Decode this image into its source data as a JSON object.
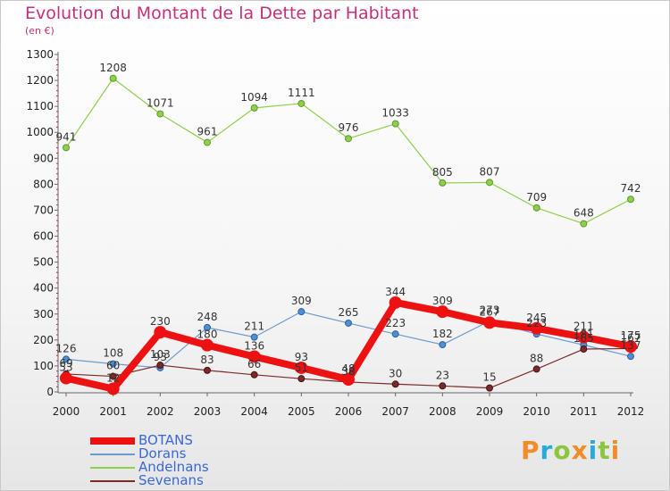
{
  "title": "Evolution du Montant de la Dette par Habitant",
  "subtitle": "(en €)",
  "logo": {
    "text": "Proxiti",
    "colors": [
      "#f28c28",
      "#29a9e0",
      "#8cc63f",
      "#f28c28",
      "#29a9e0",
      "#8cc63f",
      "#f28c28"
    ]
  },
  "chart_data": {
    "type": "line",
    "title": "Evolution du Montant de la Dette par Habitant",
    "subtitle": "(en €)",
    "xlabel": "",
    "ylabel": "",
    "x": [
      "2000",
      "2001",
      "2002",
      "2003",
      "2004",
      "2005",
      "2006",
      "2007",
      "2008",
      "2009",
      "2010",
      "2011",
      "2012"
    ],
    "ylim": [
      0,
      1300
    ],
    "yticks": [
      0,
      100,
      200,
      300,
      400,
      500,
      600,
      700,
      800,
      900,
      1000,
      1100,
      1200,
      1300
    ],
    "grid": false,
    "legend_position": "bottom-left",
    "series": [
      {
        "name": "Andelnans",
        "color": "#8ecf4d",
        "values": [
          941,
          1208,
          1071,
          961,
          1094,
          1111,
          976,
          1033,
          805,
          807,
          709,
          648,
          742
        ]
      },
      {
        "name": "Dorans",
        "color": "#6a9bd1",
        "values": [
          126,
          108,
          93,
          248,
          211,
          309,
          265,
          223,
          182,
          273,
          223,
          181,
          137
        ]
      },
      {
        "name": "Sevenans",
        "color": "#7a2a2a",
        "values": [
          69,
          60,
          103,
          83,
          66,
          51,
          38,
          30,
          23,
          15,
          88,
          165,
          167
        ]
      },
      {
        "name": "BOTANS",
        "color": "#ee1111",
        "values": [
          53,
          12,
          230,
          180,
          136,
          93,
          48,
          344,
          309,
          267,
          245,
          211,
          175
        ]
      }
    ]
  }
}
